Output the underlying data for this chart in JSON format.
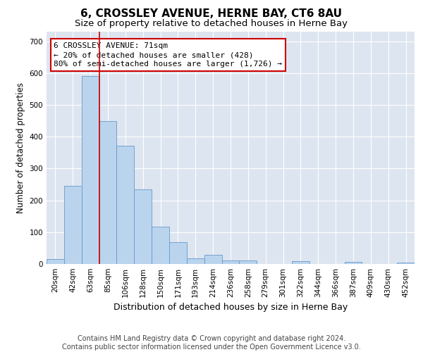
{
  "title": "6, CROSSLEY AVENUE, HERNE BAY, CT6 8AU",
  "subtitle": "Size of property relative to detached houses in Herne Bay",
  "xlabel": "Distribution of detached houses by size in Herne Bay",
  "ylabel": "Number of detached properties",
  "footer_line1": "Contains HM Land Registry data © Crown copyright and database right 2024.",
  "footer_line2": "Contains public sector information licensed under the Open Government Licence v3.0.",
  "categories": [
    "20sqm",
    "42sqm",
    "63sqm",
    "85sqm",
    "106sqm",
    "128sqm",
    "150sqm",
    "171sqm",
    "193sqm",
    "214sqm",
    "236sqm",
    "258sqm",
    "279sqm",
    "301sqm",
    "322sqm",
    "344sqm",
    "366sqm",
    "387sqm",
    "409sqm",
    "430sqm",
    "452sqm"
  ],
  "values": [
    15,
    245,
    590,
    448,
    372,
    235,
    118,
    68,
    18,
    28,
    10,
    10,
    0,
    0,
    8,
    0,
    0,
    7,
    0,
    0,
    5
  ],
  "bar_color": "#bad4ed",
  "bar_edge_color": "#6699cc",
  "annotation_text": "6 CROSSLEY AVENUE: 71sqm\n← 20% of detached houses are smaller (428)\n80% of semi-detached houses are larger (1,726) →",
  "annotation_box_color": "#ffffff",
  "annotation_box_edge_color": "#cc0000",
  "red_line_bar_index": 2,
  "red_line_at_right_edge": true,
  "ylim": [
    0,
    730
  ],
  "yticks": [
    0,
    100,
    200,
    300,
    400,
    500,
    600,
    700
  ],
  "bg_color": "#dde5f0",
  "plot_bg_color": "#dde5f0",
  "title_fontsize": 11,
  "subtitle_fontsize": 9.5,
  "xlabel_fontsize": 9,
  "ylabel_fontsize": 8.5,
  "tick_fontsize": 7.5,
  "footer_fontsize": 7
}
